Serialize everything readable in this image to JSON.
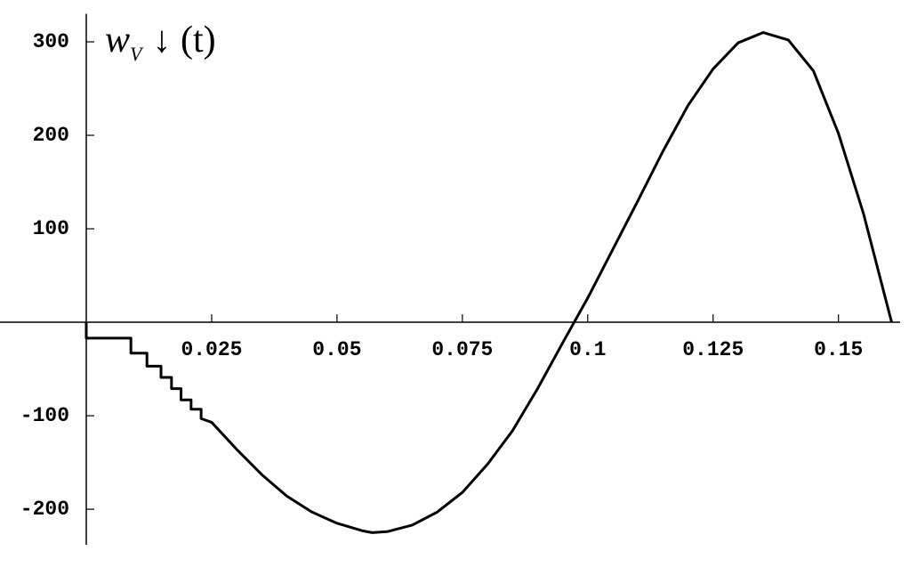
{
  "chart_data": {
    "type": "line",
    "ylabel": "w",
    "ylabel_subscript": "V",
    "ylabel_suffix": "↓ (t)",
    "x": [
      0,
      0,
      0.0089,
      0.0089,
      0.0121,
      0.0121,
      0.0149,
      0.0149,
      0.017,
      0.017,
      0.0189,
      0.0189,
      0.0209,
      0.0209,
      0.0229,
      0.0229,
      0.025,
      0.03,
      0.035,
      0.04,
      0.045,
      0.05,
      0.055,
      0.057,
      0.06,
      0.065,
      0.07,
      0.075,
      0.08,
      0.085,
      0.09,
      0.095,
      0.1,
      0.105,
      0.11,
      0.115,
      0.12,
      0.125,
      0.13,
      0.135,
      0.14,
      0.145,
      0.15,
      0.155,
      0.1606
    ],
    "values": [
      0,
      -17,
      -17,
      -33,
      -33,
      -47,
      -47,
      -59,
      -59,
      -71,
      -71,
      -83,
      -83,
      -93,
      -93,
      -103,
      -107,
      -136,
      -163,
      -186,
      -203,
      -215,
      -223,
      -225,
      -224,
      -217,
      -203,
      -182,
      -152,
      -116,
      -71,
      -22,
      26,
      78,
      130,
      183,
      232,
      271,
      299,
      310,
      302,
      269,
      202,
      116,
      0
    ],
    "color": "#000000",
    "xlim": [
      0,
      0.163
    ],
    "ylim": [
      -238,
      330
    ],
    "xticks": [
      0.025,
      0.05,
      0.075,
      0.1,
      0.125,
      0.15
    ],
    "yticks": [
      -200,
      -100,
      100,
      200,
      300
    ]
  }
}
